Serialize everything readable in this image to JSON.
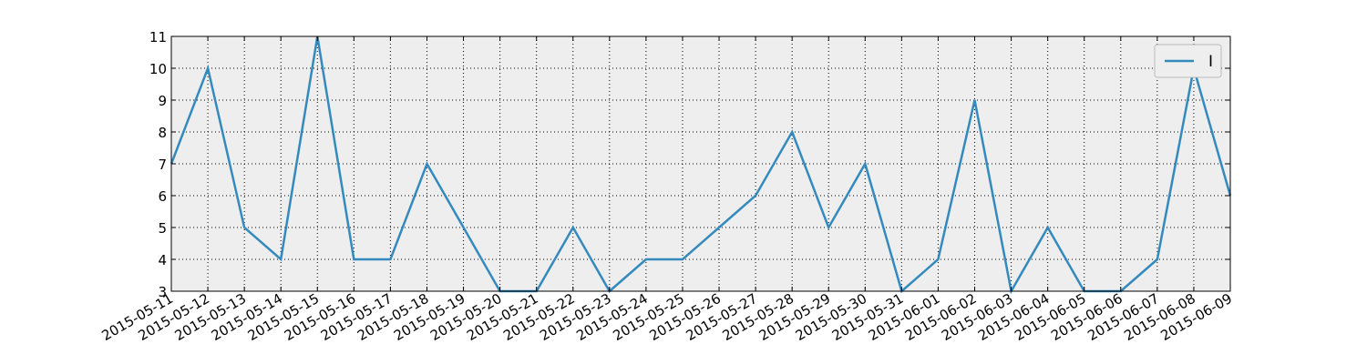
{
  "chart_data": {
    "type": "line",
    "title": "",
    "xlabel": "",
    "ylabel": "",
    "x": [
      "2015-05-11",
      "2015-05-12",
      "2015-05-13",
      "2015-05-14",
      "2015-05-15",
      "2015-05-16",
      "2015-05-17",
      "2015-05-18",
      "2015-05-19",
      "2015-05-20",
      "2015-05-21",
      "2015-05-22",
      "2015-05-23",
      "2015-05-24",
      "2015-05-25",
      "2015-05-26",
      "2015-05-27",
      "2015-05-28",
      "2015-05-29",
      "2015-05-30",
      "2015-05-31",
      "2015-06-01",
      "2015-06-02",
      "2015-06-03",
      "2015-06-04",
      "2015-06-05",
      "2015-06-06",
      "2015-06-07",
      "2015-06-08",
      "2015-06-09"
    ],
    "series": [
      {
        "name": "I",
        "color": "#348abd",
        "values": [
          7,
          10,
          5,
          4,
          11,
          4,
          4,
          7,
          5,
          3,
          3,
          5,
          3,
          4,
          4,
          5,
          6,
          8,
          5,
          7,
          3,
          4,
          9,
          3,
          5,
          3,
          3,
          4,
          10,
          6
        ]
      }
    ],
    "ylim": [
      3,
      11
    ],
    "yticks": [
      "3",
      "4",
      "5",
      "6",
      "7",
      "8",
      "9",
      "10",
      "11"
    ],
    "grid": true,
    "legend": {
      "position": "top-right",
      "entries": [
        "I"
      ]
    },
    "colors": {
      "plot_background": "#eeeeee",
      "grid": "#000000",
      "line": "#348abd"
    }
  }
}
